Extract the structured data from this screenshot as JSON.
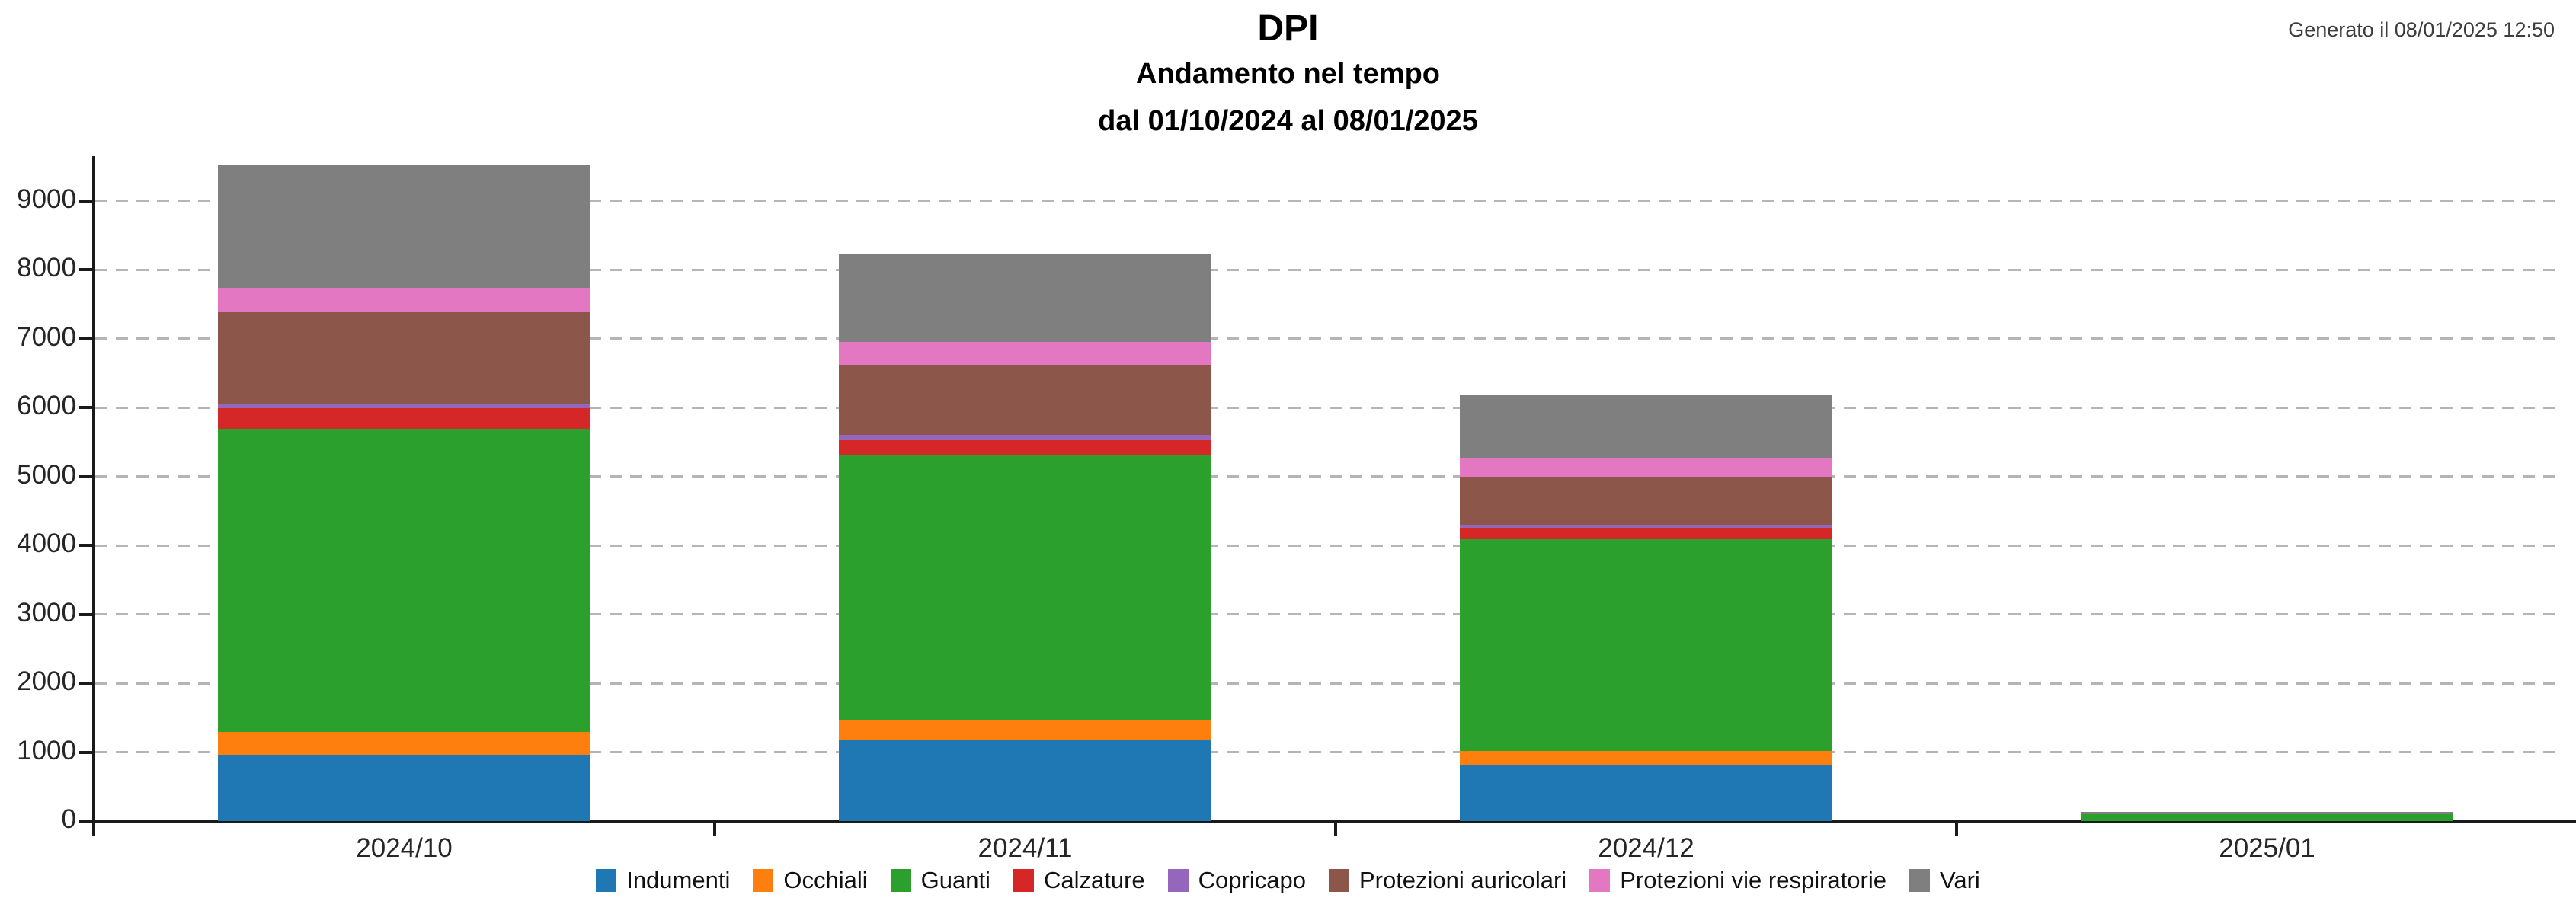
{
  "header": {
    "title": "DPI",
    "subtitle": "Andamento nel tempo",
    "date_range": "dal 01/10/2024 al 08/01/2025",
    "generated": "Generato il 08/01/2025 12:50"
  },
  "chart_data": {
    "type": "bar",
    "stacked": true,
    "title": "DPI - Andamento nel tempo",
    "categories": [
      "2024/10",
      "2024/11",
      "2024/12",
      "2025/01"
    ],
    "series": [
      {
        "name": "Indumenti",
        "color": "#1f77b4",
        "values": [
          960,
          1180,
          820,
          0
        ]
      },
      {
        "name": "Occhiali",
        "color": "#ff7f0e",
        "values": [
          330,
          290,
          200,
          0
        ]
      },
      {
        "name": "Guanti",
        "color": "#2ca02c",
        "values": [
          4400,
          3850,
          3070,
          100
        ]
      },
      {
        "name": "Calzature",
        "color": "#d62728",
        "values": [
          300,
          210,
          160,
          0
        ]
      },
      {
        "name": "Copricapo",
        "color": "#9467bd",
        "values": [
          60,
          70,
          50,
          0
        ]
      },
      {
        "name": "Protezioni auricolari",
        "color": "#8c564b",
        "values": [
          1340,
          1020,
          690,
          0
        ]
      },
      {
        "name": "Protezioni vie respiratorie",
        "color": "#e377c2",
        "values": [
          350,
          330,
          280,
          0
        ]
      },
      {
        "name": "Vari",
        "color": "#7f7f7f",
        "values": [
          1790,
          1280,
          915,
          30
        ]
      }
    ],
    "totals": [
      9530,
      8230,
      6185,
      130
    ],
    "xlabel": "",
    "ylabel": "",
    "ylim": [
      0,
      9625
    ],
    "yticks": [
      0,
      1000,
      2000,
      3000,
      4000,
      5000,
      6000,
      7000,
      8000,
      9000
    ],
    "grid": "horizontal-dashed",
    "legend_position": "bottom"
  }
}
